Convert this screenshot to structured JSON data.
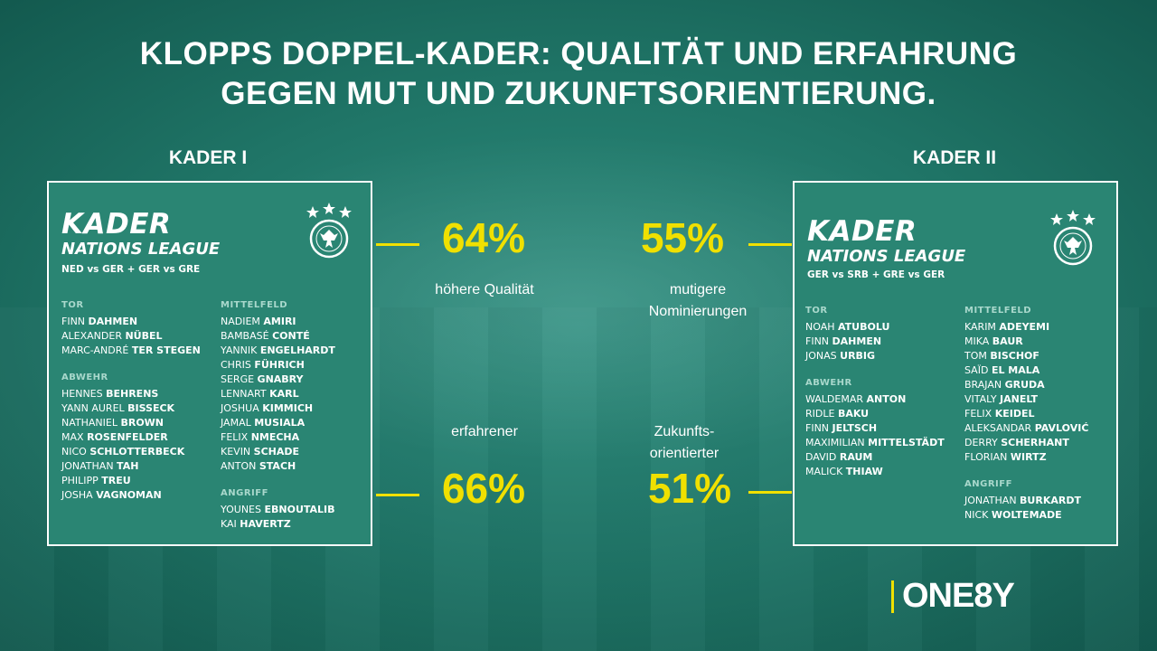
{
  "title_line1": "KLOPPS DOPPEL-KADER: QUALITÄT UND ERFAHRUNG",
  "title_line2": "GEGEN MUT UND ZUKUNFTSORIENTIERUNG.",
  "left": {
    "label": "KADER I",
    "card_title": "KADER",
    "card_subtitle": "NATIONS LEAGUE",
    "match_line": "NED vs GER + GER vs GRE",
    "tor_label": "TOR",
    "tor": [
      {
        "first": "FINN",
        "last": "DAHMEN"
      },
      {
        "first": "ALEXANDER",
        "last": "NÜBEL"
      },
      {
        "first": "MARC-ANDRÉ",
        "last": "TER STEGEN"
      }
    ],
    "abwehr_label": "ABWEHR",
    "abwehr": [
      {
        "first": "HENNES",
        "last": "BEHRENS"
      },
      {
        "first": "YANN AUREL",
        "last": "BISSECK"
      },
      {
        "first": "NATHANIEL",
        "last": "BROWN"
      },
      {
        "first": "MAX",
        "last": "ROSENFELDER"
      },
      {
        "first": "NICO",
        "last": "SCHLOTTERBECK"
      },
      {
        "first": "JONATHAN",
        "last": "TAH"
      },
      {
        "first": "PHILIPP",
        "last": "TREU"
      },
      {
        "first": "JOSHA",
        "last": "VAGNOMAN"
      }
    ],
    "mittelfeld_label": "MITTELFELD",
    "mittelfeld": [
      {
        "first": "NADIEM",
        "last": "AMIRI"
      },
      {
        "first": "BAMBASÉ",
        "last": "CONTÉ"
      },
      {
        "first": "YANNIK",
        "last": "ENGELHARDT"
      },
      {
        "first": "CHRIS",
        "last": "FÜHRICH"
      },
      {
        "first": "SERGE",
        "last": "GNABRY"
      },
      {
        "first": "LENNART",
        "last": "KARL"
      },
      {
        "first": "JOSHUA",
        "last": "KIMMICH"
      },
      {
        "first": "JAMAL",
        "last": "MUSIALA"
      },
      {
        "first": "FELIX",
        "last": "NMECHA"
      },
      {
        "first": "KEVIN",
        "last": "SCHADE"
      },
      {
        "first": "ANTON",
        "last": "STACH"
      }
    ],
    "angriff_label": "ANGRIFF",
    "angriff": [
      {
        "first": "YOUNES",
        "last": "EBNOUTALIB"
      },
      {
        "first": "KAI",
        "last": "HAVERTZ"
      }
    ]
  },
  "right": {
    "label": "KADER II",
    "card_title": "KADER",
    "card_subtitle": "NATIONS LEAGUE",
    "match_line": "GER vs SRB + GRE vs GER",
    "tor_label": "TOR",
    "tor": [
      {
        "first": "NOAH",
        "last": "ATUBOLU"
      },
      {
        "first": "FINN",
        "last": "DAHMEN"
      },
      {
        "first": "JONAS",
        "last": "URBIG"
      }
    ],
    "abwehr_label": "ABWEHR",
    "abwehr": [
      {
        "first": "WALDEMAR",
        "last": "ANTON"
      },
      {
        "first": "RIDLE",
        "last": "BAKU"
      },
      {
        "first": "FINN",
        "last": "JELTSCH"
      },
      {
        "first": "MAXIMILIAN",
        "last": "MITTELSTÄDT"
      },
      {
        "first": "DAVID",
        "last": "RAUM"
      },
      {
        "first": "MALICK",
        "last": "THIAW"
      }
    ],
    "mittelfeld_label": "MITTELFELD",
    "mittelfeld": [
      {
        "first": "KARIM",
        "last": "ADEYEMI"
      },
      {
        "first": "MIKA",
        "last": "BAUR"
      },
      {
        "first": "TOM",
        "last": "BISCHOF"
      },
      {
        "first": "SAÏD",
        "last": "EL MALA"
      },
      {
        "first": "BRAJAN",
        "last": "GRUDA"
      },
      {
        "first": "VITALY",
        "last": "JANELT"
      },
      {
        "first": "FELIX",
        "last": "KEIDEL"
      },
      {
        "first": "ALEKSANDAR",
        "last": "PAVLOVIĆ"
      },
      {
        "first": "DERRY",
        "last": "SCHERHANT"
      },
      {
        "first": "FLORIAN",
        "last": "WIRTZ"
      }
    ],
    "angriff_label": "ANGRIFF",
    "angriff": [
      {
        "first": "JONATHAN",
        "last": "BURKARDT"
      },
      {
        "first": "NICK",
        "last": "WOLTEMADE"
      }
    ]
  },
  "stats": {
    "left_top_value": "64%",
    "left_top_caption": "höhere Qualität",
    "left_bottom_value": "66%",
    "left_bottom_caption": "erfahrener",
    "right_top_value": "55%",
    "right_top_caption_1": "mutigere",
    "right_top_caption_2": "Nominierungen",
    "right_bottom_value": "51%",
    "right_bottom_caption_1": "Zukunfts-",
    "right_bottom_caption_2": "orientierter"
  },
  "logo": "ONE8Y",
  "colors": {
    "accent_yellow": "#f0e000",
    "card_green": "#2a8573",
    "background_green": "#1f7466"
  }
}
